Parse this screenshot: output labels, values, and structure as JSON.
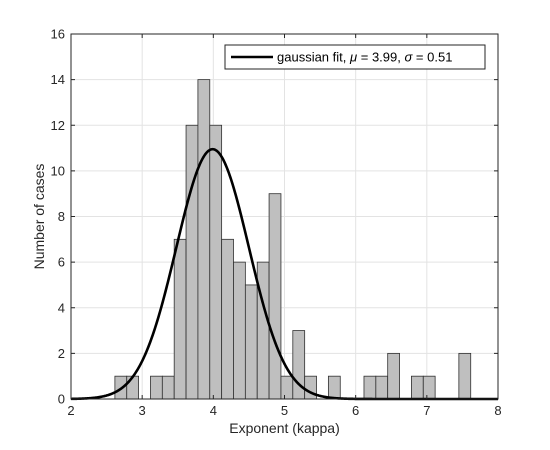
{
  "chart_data": {
    "type": "bar",
    "xlabel": "Exponent (kappa)",
    "ylabel": "Number of cases",
    "xlim": [
      2,
      8
    ],
    "ylim": [
      0,
      16
    ],
    "xticks": [
      2,
      3,
      4,
      5,
      6,
      7,
      8
    ],
    "yticks": [
      0,
      2,
      4,
      6,
      8,
      10,
      12,
      14,
      16
    ],
    "grid": true,
    "legend_position": "top-right",
    "histogram": {
      "bin_width": 0.1667,
      "bin_starts": [
        2.6167,
        2.7833,
        3.1167,
        3.2833,
        3.45,
        3.6167,
        3.7833,
        3.95,
        4.1167,
        4.2833,
        4.45,
        4.6167,
        4.7833,
        4.95,
        5.1167,
        5.2833,
        5.6167,
        6.1167,
        6.2833,
        6.45,
        6.7833,
        6.95,
        7.45
      ],
      "counts": [
        1,
        1,
        1,
        1,
        7,
        12,
        14,
        12,
        7,
        6,
        5,
        6,
        9,
        1,
        3,
        1,
        1,
        1,
        1,
        2,
        1,
        1,
        2
      ],
      "fill_color": "#bfbfbf",
      "edge_color": "#303030"
    },
    "series": [
      {
        "name": "gaussian fit, μ = 3.99, σ = 0.51",
        "type": "line",
        "mu": 3.99,
        "sigma": 0.51,
        "peak": 10.95,
        "color": "#000000"
      }
    ]
  },
  "legend": {
    "prefix": "gaussian fit, ",
    "mu_symbol": "μ",
    "mu_text": " = 3.99, ",
    "sigma_symbol": "σ",
    "sigma_text": " = 0.51"
  }
}
